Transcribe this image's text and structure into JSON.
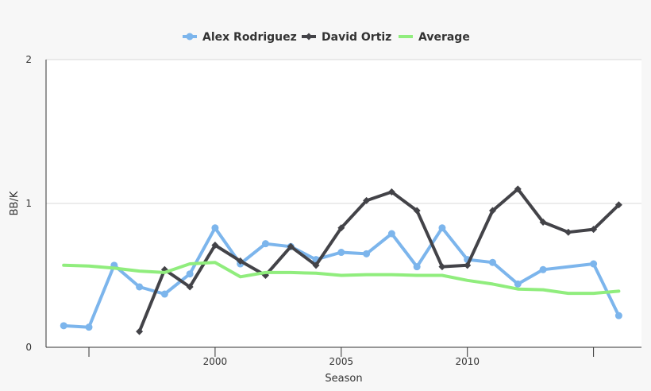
{
  "chart_data": {
    "type": "line",
    "xlabel": "Season",
    "ylabel": "BB/K",
    "xlim": [
      1993.3,
      2016.9
    ],
    "ylim": [
      0,
      2
    ],
    "y_ticks": [
      "0",
      "1",
      "2"
    ],
    "x_ticks": [
      "",
      "2000",
      "2005",
      "2010",
      ""
    ],
    "x_tick_values": [
      1995,
      2000,
      2005,
      2010,
      2015
    ],
    "grid": true,
    "legend_position": "top-center",
    "series": [
      {
        "name": "Alex Rodriguez",
        "color": "#7cb5ec",
        "marker": "circle",
        "x": [
          1994,
          1995,
          1996,
          1997,
          1998,
          1999,
          2000,
          2001,
          2002,
          2003,
          2004,
          2005,
          2006,
          2007,
          2008,
          2009,
          2010,
          2011,
          2012,
          2013,
          2015,
          2016
        ],
        "y": [
          0.15,
          0.14,
          0.57,
          0.42,
          0.37,
          0.51,
          0.83,
          0.58,
          0.72,
          0.7,
          0.61,
          0.66,
          0.65,
          0.79,
          0.56,
          0.83,
          0.61,
          0.59,
          0.44,
          0.54,
          0.58,
          0.22
        ]
      },
      {
        "name": "David Ortiz",
        "color": "#434348",
        "marker": "diamond",
        "x": [
          1997,
          1998,
          1999,
          2000,
          2001,
          2002,
          2003,
          2004,
          2005,
          2006,
          2007,
          2008,
          2009,
          2010,
          2011,
          2012,
          2013,
          2014,
          2015,
          2016
        ],
        "y": [
          0.11,
          0.54,
          0.42,
          0.71,
          0.6,
          0.5,
          0.7,
          0.57,
          0.83,
          1.02,
          1.08,
          0.95,
          0.56,
          0.57,
          0.95,
          1.1,
          0.87,
          0.8,
          0.82,
          0.99
        ]
      },
      {
        "name": "Average",
        "color": "#90ed7d",
        "marker": "none",
        "x": [
          1994,
          1995,
          1996,
          1997,
          1998,
          1999,
          2000,
          2001,
          2002,
          2003,
          2004,
          2005,
          2006,
          2007,
          2008,
          2009,
          2010,
          2011,
          2012,
          2013,
          2014,
          2015,
          2016
        ],
        "y": [
          0.57,
          0.565,
          0.55,
          0.53,
          0.52,
          0.58,
          0.59,
          0.49,
          0.52,
          0.52,
          0.515,
          0.5,
          0.505,
          0.505,
          0.5,
          0.5,
          0.465,
          0.44,
          0.405,
          0.4,
          0.375,
          0.375,
          0.39
        ]
      }
    ]
  }
}
